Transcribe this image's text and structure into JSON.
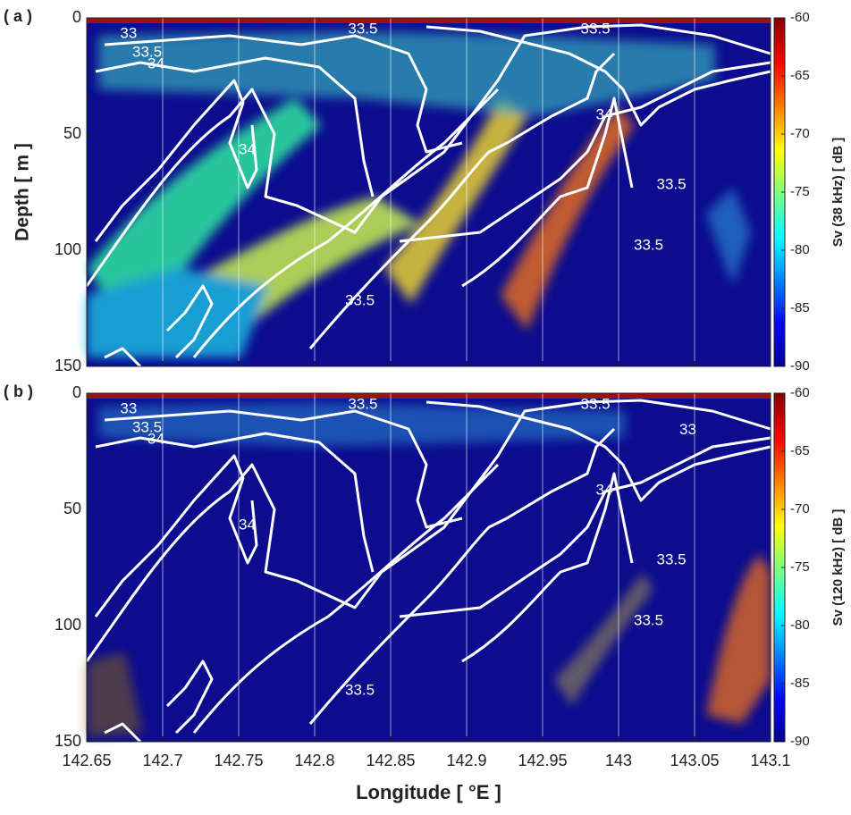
{
  "chart_data": [
    {
      "type": "heatmap",
      "panel_label": "( a )",
      "ylabel": "Depth  [ m ]",
      "xlim": [
        142.65,
        143.1
      ],
      "xticks": [
        142.65,
        142.7,
        142.75,
        142.8,
        142.85,
        142.9,
        142.95,
        143,
        143.05,
        143.1
      ],
      "ylim": [
        0,
        150
      ],
      "yticks": [
        0,
        50,
        100,
        150
      ],
      "y_inverted": true,
      "grid": true,
      "colorbar": {
        "label": "Sv (38 kHz) [ dB ]",
        "lim": [
          -90,
          -60
        ],
        "ticks": [
          -60,
          -65,
          -70,
          -75,
          -80,
          -85,
          -90
        ],
        "colormap": "jet"
      },
      "annotations": [
        {
          "text": "33",
          "x": 142.672,
          "y": 7
        },
        {
          "text": "33.5",
          "x": 142.68,
          "y": 15
        },
        {
          "text": "34",
          "x": 142.69,
          "y": 20
        },
        {
          "text": "33.5",
          "x": 142.822,
          "y": 5
        },
        {
          "text": "33.5",
          "x": 142.975,
          "y": 5
        },
        {
          "text": "34",
          "x": 142.75,
          "y": 57
        },
        {
          "text": "34",
          "x": 142.985,
          "y": 42
        },
        {
          "text": "33.5",
          "x": 143.025,
          "y": 72
        },
        {
          "text": "33.5",
          "x": 143.01,
          "y": 98
        },
        {
          "text": "33.5",
          "x": 142.82,
          "y": 122
        }
      ]
    },
    {
      "type": "heatmap",
      "panel_label": "( b )",
      "xlabel": "Longitude  [ °E ]",
      "xlim": [
        142.65,
        143.1
      ],
      "xticks": [
        142.65,
        142.7,
        142.75,
        142.8,
        142.85,
        142.9,
        142.95,
        143,
        143.05,
        143.1
      ],
      "ylim": [
        0,
        150
      ],
      "yticks": [
        0,
        50,
        100,
        150
      ],
      "y_inverted": true,
      "grid": true,
      "colorbar": {
        "label": "Sv (120 kHz) [ dB ]",
        "lim": [
          -90,
          -60
        ],
        "ticks": [
          -60,
          -65,
          -70,
          -75,
          -80,
          -85,
          -90
        ],
        "colormap": "jet"
      },
      "annotations": [
        {
          "text": "33",
          "x": 142.672,
          "y": 7
        },
        {
          "text": "33.5",
          "x": 142.68,
          "y": 15
        },
        {
          "text": "34",
          "x": 142.69,
          "y": 20
        },
        {
          "text": "33.5",
          "x": 142.822,
          "y": 5
        },
        {
          "text": "33.5",
          "x": 142.975,
          "y": 5
        },
        {
          "text": "33",
          "x": 143.04,
          "y": 16
        },
        {
          "text": "34",
          "x": 142.75,
          "y": 57
        },
        {
          "text": "34",
          "x": 142.985,
          "y": 42
        },
        {
          "text": "33.5",
          "x": 143.025,
          "y": 72
        },
        {
          "text": "33.5",
          "x": 143.01,
          "y": 98
        },
        {
          "text": "33.5",
          "x": 142.82,
          "y": 128
        }
      ]
    }
  ]
}
